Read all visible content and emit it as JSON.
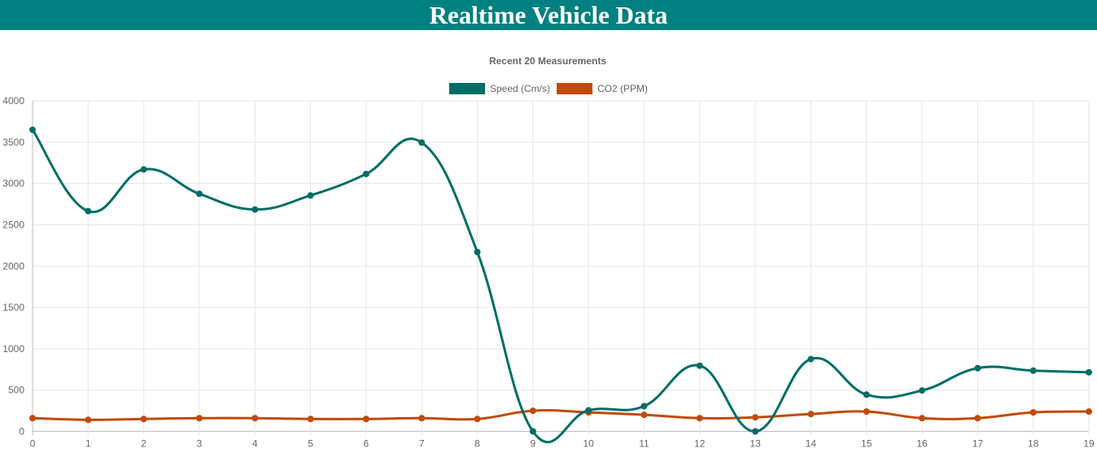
{
  "header": {
    "title": "Realtime Vehicle Data"
  },
  "colors": {
    "header_bg": "#008080",
    "speed": "#006d66",
    "co2": "#c14a0a",
    "grid": "#e6e6e6",
    "text": "#666666"
  },
  "chart_data": {
    "type": "line",
    "title": "Recent 20 Measurements",
    "categories": [
      "0",
      "1",
      "2",
      "3",
      "4",
      "5",
      "6",
      "7",
      "8",
      "9",
      "10",
      "11",
      "12",
      "13",
      "14",
      "15",
      "16",
      "17",
      "18",
      "19"
    ],
    "series": [
      {
        "name": "Speed (Cm/s)",
        "color": "#006d66",
        "values": [
          3650,
          2665,
          3170,
          2875,
          2685,
          2855,
          3115,
          3495,
          2170,
          0,
          255,
          305,
          795,
          0,
          875,
          445,
          495,
          765,
          735,
          715
        ]
      },
      {
        "name": "CO2 (PPM)",
        "color": "#c14a0a",
        "values": [
          160,
          140,
          150,
          160,
          160,
          150,
          150,
          160,
          150,
          250,
          230,
          200,
          160,
          170,
          210,
          240,
          160,
          160,
          230,
          240
        ]
      }
    ],
    "ylim": [
      0,
      4000
    ],
    "yticks": [
      0,
      500,
      1000,
      1500,
      2000,
      2500,
      3000,
      3500,
      4000
    ],
    "grid": true,
    "legend": "top-center",
    "curve": "smooth"
  }
}
